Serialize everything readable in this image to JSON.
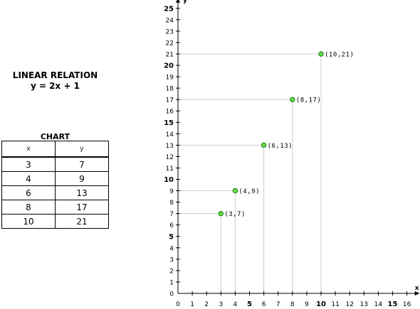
{
  "title": {
    "line1": "LINEAR RELATION",
    "line2": "y = 2x + 1"
  },
  "table": {
    "caption": "CHART",
    "headers": [
      "x",
      "y"
    ],
    "rows": [
      [
        "3",
        "7"
      ],
      [
        "4",
        "9"
      ],
      [
        "6",
        "13"
      ],
      [
        "8",
        "17"
      ],
      [
        "10",
        "21"
      ]
    ]
  },
  "chart_data": {
    "type": "scatter",
    "xlabel": "x",
    "ylabel": "y",
    "xlim": [
      0,
      16
    ],
    "ylim": [
      0,
      25
    ],
    "x_ticks": [
      0,
      1,
      2,
      3,
      4,
      5,
      6,
      7,
      8,
      9,
      10,
      11,
      12,
      13,
      14,
      15,
      16
    ],
    "y_ticks": [
      0,
      1,
      2,
      3,
      4,
      5,
      6,
      7,
      8,
      9,
      10,
      11,
      12,
      13,
      14,
      15,
      16,
      17,
      18,
      19,
      20,
      21,
      22,
      23,
      24,
      25
    ],
    "x_major_ticks": [
      5,
      10,
      15
    ],
    "y_major_ticks": [
      5,
      10,
      15,
      20,
      25
    ],
    "grid": false,
    "drop_lines": true,
    "point_color": "#66dd44",
    "point_stroke": "#1a7a1a",
    "guide_color": "#cccccc",
    "points": [
      {
        "x": 3,
        "y": 7,
        "label": "(3,7)"
      },
      {
        "x": 4,
        "y": 9,
        "label": "(4,9)"
      },
      {
        "x": 6,
        "y": 13,
        "label": "(6,13)"
      },
      {
        "x": 8,
        "y": 17,
        "label": "(8,17)"
      },
      {
        "x": 10,
        "y": 21,
        "label": "(10,21)"
      }
    ]
  }
}
